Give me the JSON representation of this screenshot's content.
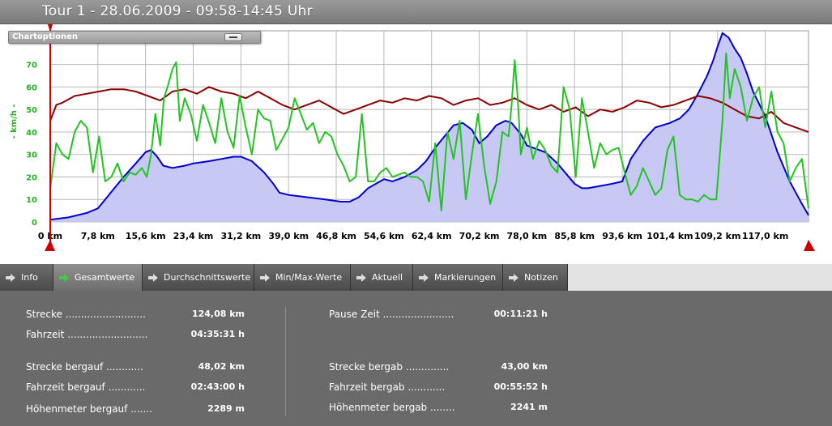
{
  "header": {
    "title": "Tour 1 - 28.06.2009 - 09:58-14:45 Uhr"
  },
  "chart_options": {
    "label": "Chartoptionen",
    "minimize_icon": "minimize-icon"
  },
  "chart_data": {
    "type": "line",
    "ylabel": "- km/h -",
    "ylim": [
      0,
      85
    ],
    "y_ticks": [
      0,
      10,
      20,
      30,
      40,
      50,
      60,
      70
    ],
    "xlim": [
      0,
      124.08
    ],
    "x_tick_values": [
      0,
      7.8,
      15.6,
      23.4,
      31.2,
      39.0,
      46.8,
      54.6,
      62.4,
      70.2,
      78.0,
      85.8,
      93.6,
      101.4,
      109.2,
      117.0
    ],
    "x_tick_labels": [
      "0 km",
      "7,8 km",
      "15,6 km",
      "23,4 km",
      "31,2 km",
      "39,0 km",
      "46,8 km",
      "54,6 km",
      "62,4 km",
      "70,2 km",
      "78,0 km",
      "85,8 km",
      "93,6 km",
      "101,4 km",
      "109,2 km",
      "117,0 km"
    ],
    "grid": true,
    "series": [
      {
        "color": "#0000cc",
        "fill": "#c8c8f4",
        "style": "area",
        "x": [
          0,
          3,
          6,
          7.8,
          9,
          10.5,
          12,
          14,
          15.6,
          16.5,
          17.5,
          18.5,
          20,
          22,
          23.4,
          26,
          28,
          30,
          31.2,
          33,
          35,
          36.5,
          37.5,
          39,
          42,
          45,
          47.5,
          49,
          50.5,
          52,
          54.6,
          56,
          58,
          60,
          61.5,
          63,
          64.5,
          66,
          67.5,
          69,
          70.2,
          71.5,
          73,
          74.5,
          75.5,
          77,
          78,
          79,
          81,
          83,
          85.8,
          87,
          88,
          90,
          92,
          93.6,
          95,
          97,
          99,
          101.4,
          103,
          104.5,
          106,
          107.5,
          108.5,
          109.2,
          110,
          111,
          112,
          113,
          114,
          115,
          117,
          119,
          121,
          123,
          124.08
        ],
        "y": [
          1,
          2,
          4,
          6,
          10,
          15,
          20,
          26,
          31,
          32,
          29,
          25,
          24,
          25,
          26,
          27,
          28,
          29,
          29,
          27,
          22,
          17,
          13,
          12,
          11,
          10,
          9,
          9,
          11,
          15,
          19,
          18,
          20,
          23,
          27,
          33,
          38,
          43,
          44,
          41,
          35,
          38,
          43,
          45,
          44,
          39,
          34,
          33,
          31,
          26,
          17,
          15,
          15,
          16,
          17,
          18,
          28,
          36,
          42,
          44,
          46,
          50,
          57,
          65,
          72,
          78,
          84,
          82,
          77,
          73,
          66,
          58,
          47,
          31,
          18,
          8,
          3
        ]
      },
      {
        "color": "#8b0000",
        "style": "line",
        "x": [
          0,
          1,
          2,
          4,
          6,
          8,
          10,
          12,
          14,
          16,
          18,
          20,
          22,
          24,
          26,
          28,
          30,
          32,
          34,
          36,
          38,
          40,
          42,
          44,
          46,
          48,
          50,
          52,
          54,
          56,
          58,
          60,
          62,
          64,
          66,
          68,
          70,
          72,
          74,
          76,
          78,
          80,
          82,
          84,
          86,
          88,
          90,
          92,
          94,
          96,
          98,
          100,
          102,
          104,
          106,
          108,
          110,
          112,
          114,
          116,
          118,
          120,
          122,
          124.08
        ],
        "y": [
          45,
          52,
          53,
          56,
          57,
          58,
          59,
          59,
          58,
          56,
          54,
          58,
          59,
          57,
          60,
          58,
          57,
          55,
          58,
          55,
          52,
          50,
          52,
          54,
          51,
          48,
          50,
          52,
          54,
          53,
          55,
          54,
          56,
          55,
          52,
          54,
          55,
          52,
          53,
          55,
          52,
          50,
          52,
          49,
          51,
          47,
          50,
          49,
          51,
          54,
          53,
          51,
          52,
          54,
          56,
          55,
          53,
          50,
          47,
          46,
          49,
          44,
          42,
          40
        ]
      },
      {
        "color": "#22c422",
        "style": "line",
        "x": [
          0,
          0.5,
          1,
          2,
          3,
          4,
          5,
          6,
          7,
          8,
          9,
          10,
          11,
          12,
          13,
          14,
          15,
          15.8,
          16.5,
          17.2,
          18,
          18.6,
          19.2,
          20,
          20.6,
          21.2,
          22,
          23,
          24,
          25,
          26,
          27,
          28,
          29,
          30,
          31,
          32,
          33,
          34,
          35,
          36,
          37,
          38,
          39,
          40,
          41,
          42,
          43,
          44,
          45,
          46,
          47,
          48,
          49,
          50,
          51,
          52,
          53,
          54,
          55,
          56,
          57,
          58,
          59,
          60,
          61,
          62,
          63,
          64,
          65,
          66,
          67,
          68,
          69,
          70,
          71,
          72,
          73,
          74,
          75,
          75.5,
          76,
          76.5,
          77,
          78,
          79,
          80,
          81,
          82,
          83,
          84,
          85,
          86,
          87,
          88,
          89,
          90,
          91,
          92,
          93,
          94,
          95,
          96,
          97,
          98,
          99,
          100,
          101,
          102,
          103,
          104,
          105,
          106,
          107,
          108,
          109,
          110,
          110.6,
          111.2,
          112,
          113,
          114,
          115,
          116,
          117,
          118,
          119,
          120,
          121,
          122,
          123,
          124.08
        ],
        "y": [
          15,
          25,
          35,
          30,
          28,
          40,
          45,
          42,
          22,
          38,
          18,
          20,
          26,
          18,
          22,
          21,
          24,
          20,
          30,
          48,
          34,
          55,
          60,
          68,
          71,
          45,
          55,
          48,
          36,
          52,
          44,
          35,
          55,
          40,
          33,
          56,
          42,
          30,
          50,
          46,
          45,
          32,
          37,
          42,
          55,
          48,
          41,
          44,
          35,
          40,
          38,
          30,
          25,
          18,
          20,
          48,
          18,
          18,
          22,
          24,
          20,
          21,
          22,
          20,
          20,
          18,
          9,
          35,
          5,
          40,
          28,
          45,
          10,
          30,
          48,
          25,
          8,
          18,
          40,
          38,
          52,
          72,
          55,
          30,
          42,
          28,
          36,
          32,
          25,
          22,
          60,
          50,
          20,
          55,
          40,
          24,
          35,
          30,
          32,
          33,
          22,
          12,
          16,
          24,
          18,
          12,
          15,
          32,
          38,
          12,
          10,
          10,
          9,
          12,
          10,
          10,
          45,
          75,
          55,
          68,
          60,
          45,
          55,
          60,
          42,
          58,
          40,
          35,
          18,
          24,
          28,
          6
        ]
      }
    ]
  },
  "tabs": [
    {
      "label": "Info",
      "active": false
    },
    {
      "label": "Gesamtwerte",
      "active": true
    },
    {
      "label": "Durchschnittswerte",
      "active": false
    },
    {
      "label": "Min/Max-Werte",
      "active": false
    },
    {
      "label": "Aktuell",
      "active": false
    },
    {
      "label": "Markierungen",
      "active": false
    },
    {
      "label": "Notizen",
      "active": false
    }
  ],
  "stats": {
    "left": [
      {
        "label": "Strecke ..........................",
        "value": "124,08 km"
      },
      {
        "label": "Fahrzeit ..........................",
        "value": "04:35:31 h"
      },
      {
        "label": "Strecke bergauf ............",
        "value": "48,02 km"
      },
      {
        "label": "Fahrzeit bergauf ............",
        "value": "02:43:00 h"
      },
      {
        "label": "Höhenmeter bergauf .......",
        "value": "2289 m"
      }
    ],
    "right": [
      {
        "label": "Pause Zeit .......................",
        "value": "00:11:21 h"
      },
      {
        "label": "Strecke bergab ..............",
        "value": "43,00 km"
      },
      {
        "label": "Fahrzeit bergab ............",
        "value": "00:55:52 h"
      },
      {
        "label": "Höhenmeter bergab ........",
        "value": "2241 m"
      }
    ]
  },
  "colors": {
    "active_tab_arrow": "#3ecf3e",
    "tab_arrow": "#dcdcdc",
    "marker": "#cc0000"
  }
}
